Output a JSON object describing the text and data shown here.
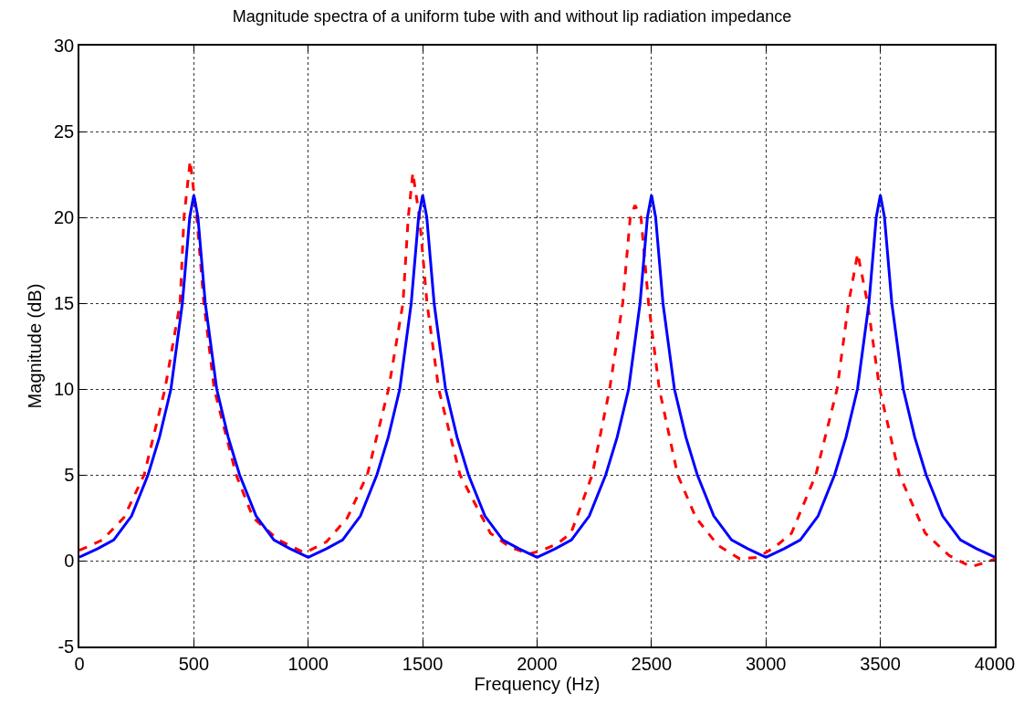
{
  "chart_data": {
    "type": "line",
    "title": "Magnitude spectra of a uniform tube with and without lip radiation impedance",
    "xlabel": "Frequency (Hz)",
    "ylabel": "Magnitude (dB)",
    "xlim": [
      0,
      4000
    ],
    "xticks": [
      0,
      500,
      1000,
      1500,
      2000,
      2500,
      3000,
      3500,
      4000
    ],
    "ylim": [
      -5,
      30
    ],
    "yticks": [
      -5,
      0,
      5,
      10,
      15,
      20,
      25,
      30
    ],
    "grid": true,
    "marker": "none",
    "series": [
      {
        "color": "#ff0000",
        "line_style": "dashed",
        "x": [
          0,
          100,
          194,
          283,
          374,
          440,
          457,
          484,
          513,
          544,
          589,
          685,
          759,
          870,
          985,
          1080,
          1171,
          1258,
          1351,
          1414,
          1437,
          1457,
          1486,
          1519,
          1570,
          1663,
          1796,
          1880,
          1965,
          2022,
          2090,
          2148,
          2241,
          2317,
          2374,
          2407,
          2428,
          2454,
          2487,
          2534,
          2614,
          2694,
          2790,
          2886,
          2966,
          3040,
          3112,
          3218,
          3311,
          3361,
          3401,
          3444,
          3497,
          3583,
          3696,
          3800,
          3896,
          3960,
          4000
        ],
        "values": [
          0.6,
          1.2,
          2.5,
          5,
          10,
          15,
          20,
          23.3,
          20,
          15,
          10,
          5,
          2.5,
          1.2,
          0.45,
          1.1,
          2.5,
          5,
          10,
          15,
          20,
          22.6,
          20,
          15,
          10,
          5,
          1.6,
          0.8,
          0.39,
          0.6,
          1,
          1.6,
          5,
          10,
          15,
          20,
          20.7,
          20,
          15,
          10,
          5,
          2.5,
          0.9,
          0.1,
          0.2,
          0.8,
          1.6,
          5,
          10,
          15,
          17.9,
          15,
          10,
          5,
          1.6,
          0.3,
          -0.36,
          -0.1,
          0.1
        ]
      },
      {
        "color": "#0000ff",
        "line_style": "solid",
        "x": [
          0,
          80,
          150,
          228,
          300,
          350,
          400,
          450,
          482,
          500,
          518,
          550,
          600,
          650,
          700,
          772,
          850,
          920,
          1000,
          1080,
          1150,
          1228,
          1300,
          1350,
          1400,
          1450,
          1482,
          1500,
          1518,
          1550,
          1600,
          1650,
          1700,
          1772,
          1850,
          1920,
          2000,
          2080,
          2150,
          2228,
          2300,
          2350,
          2400,
          2450,
          2482,
          2500,
          2518,
          2550,
          2600,
          2650,
          2700,
          2772,
          2850,
          2920,
          3000,
          3080,
          3150,
          3228,
          3300,
          3350,
          3400,
          3450,
          3482,
          3500,
          3518,
          3550,
          3600,
          3650,
          3700,
          3772,
          3850,
          3920,
          4000
        ],
        "values": [
          0.2,
          0.7,
          1.2,
          2.6,
          5,
          7.2,
          10,
          15,
          20,
          21.3,
          20,
          15,
          10,
          7.2,
          5,
          2.6,
          1.2,
          0.7,
          0.2,
          0.7,
          1.2,
          2.6,
          5,
          7.2,
          10,
          15,
          20,
          21.3,
          20,
          15,
          10,
          7.2,
          5,
          2.6,
          1.2,
          0.7,
          0.2,
          0.7,
          1.2,
          2.6,
          5,
          7.2,
          10,
          15,
          20,
          21.3,
          20,
          15,
          10,
          7.2,
          5,
          2.6,
          1.2,
          0.7,
          0.2,
          0.7,
          1.2,
          2.6,
          5,
          7.2,
          10,
          15,
          20,
          21.3,
          20,
          15,
          10,
          7.2,
          5,
          2.6,
          1.2,
          0.7,
          0.2
        ]
      }
    ]
  }
}
